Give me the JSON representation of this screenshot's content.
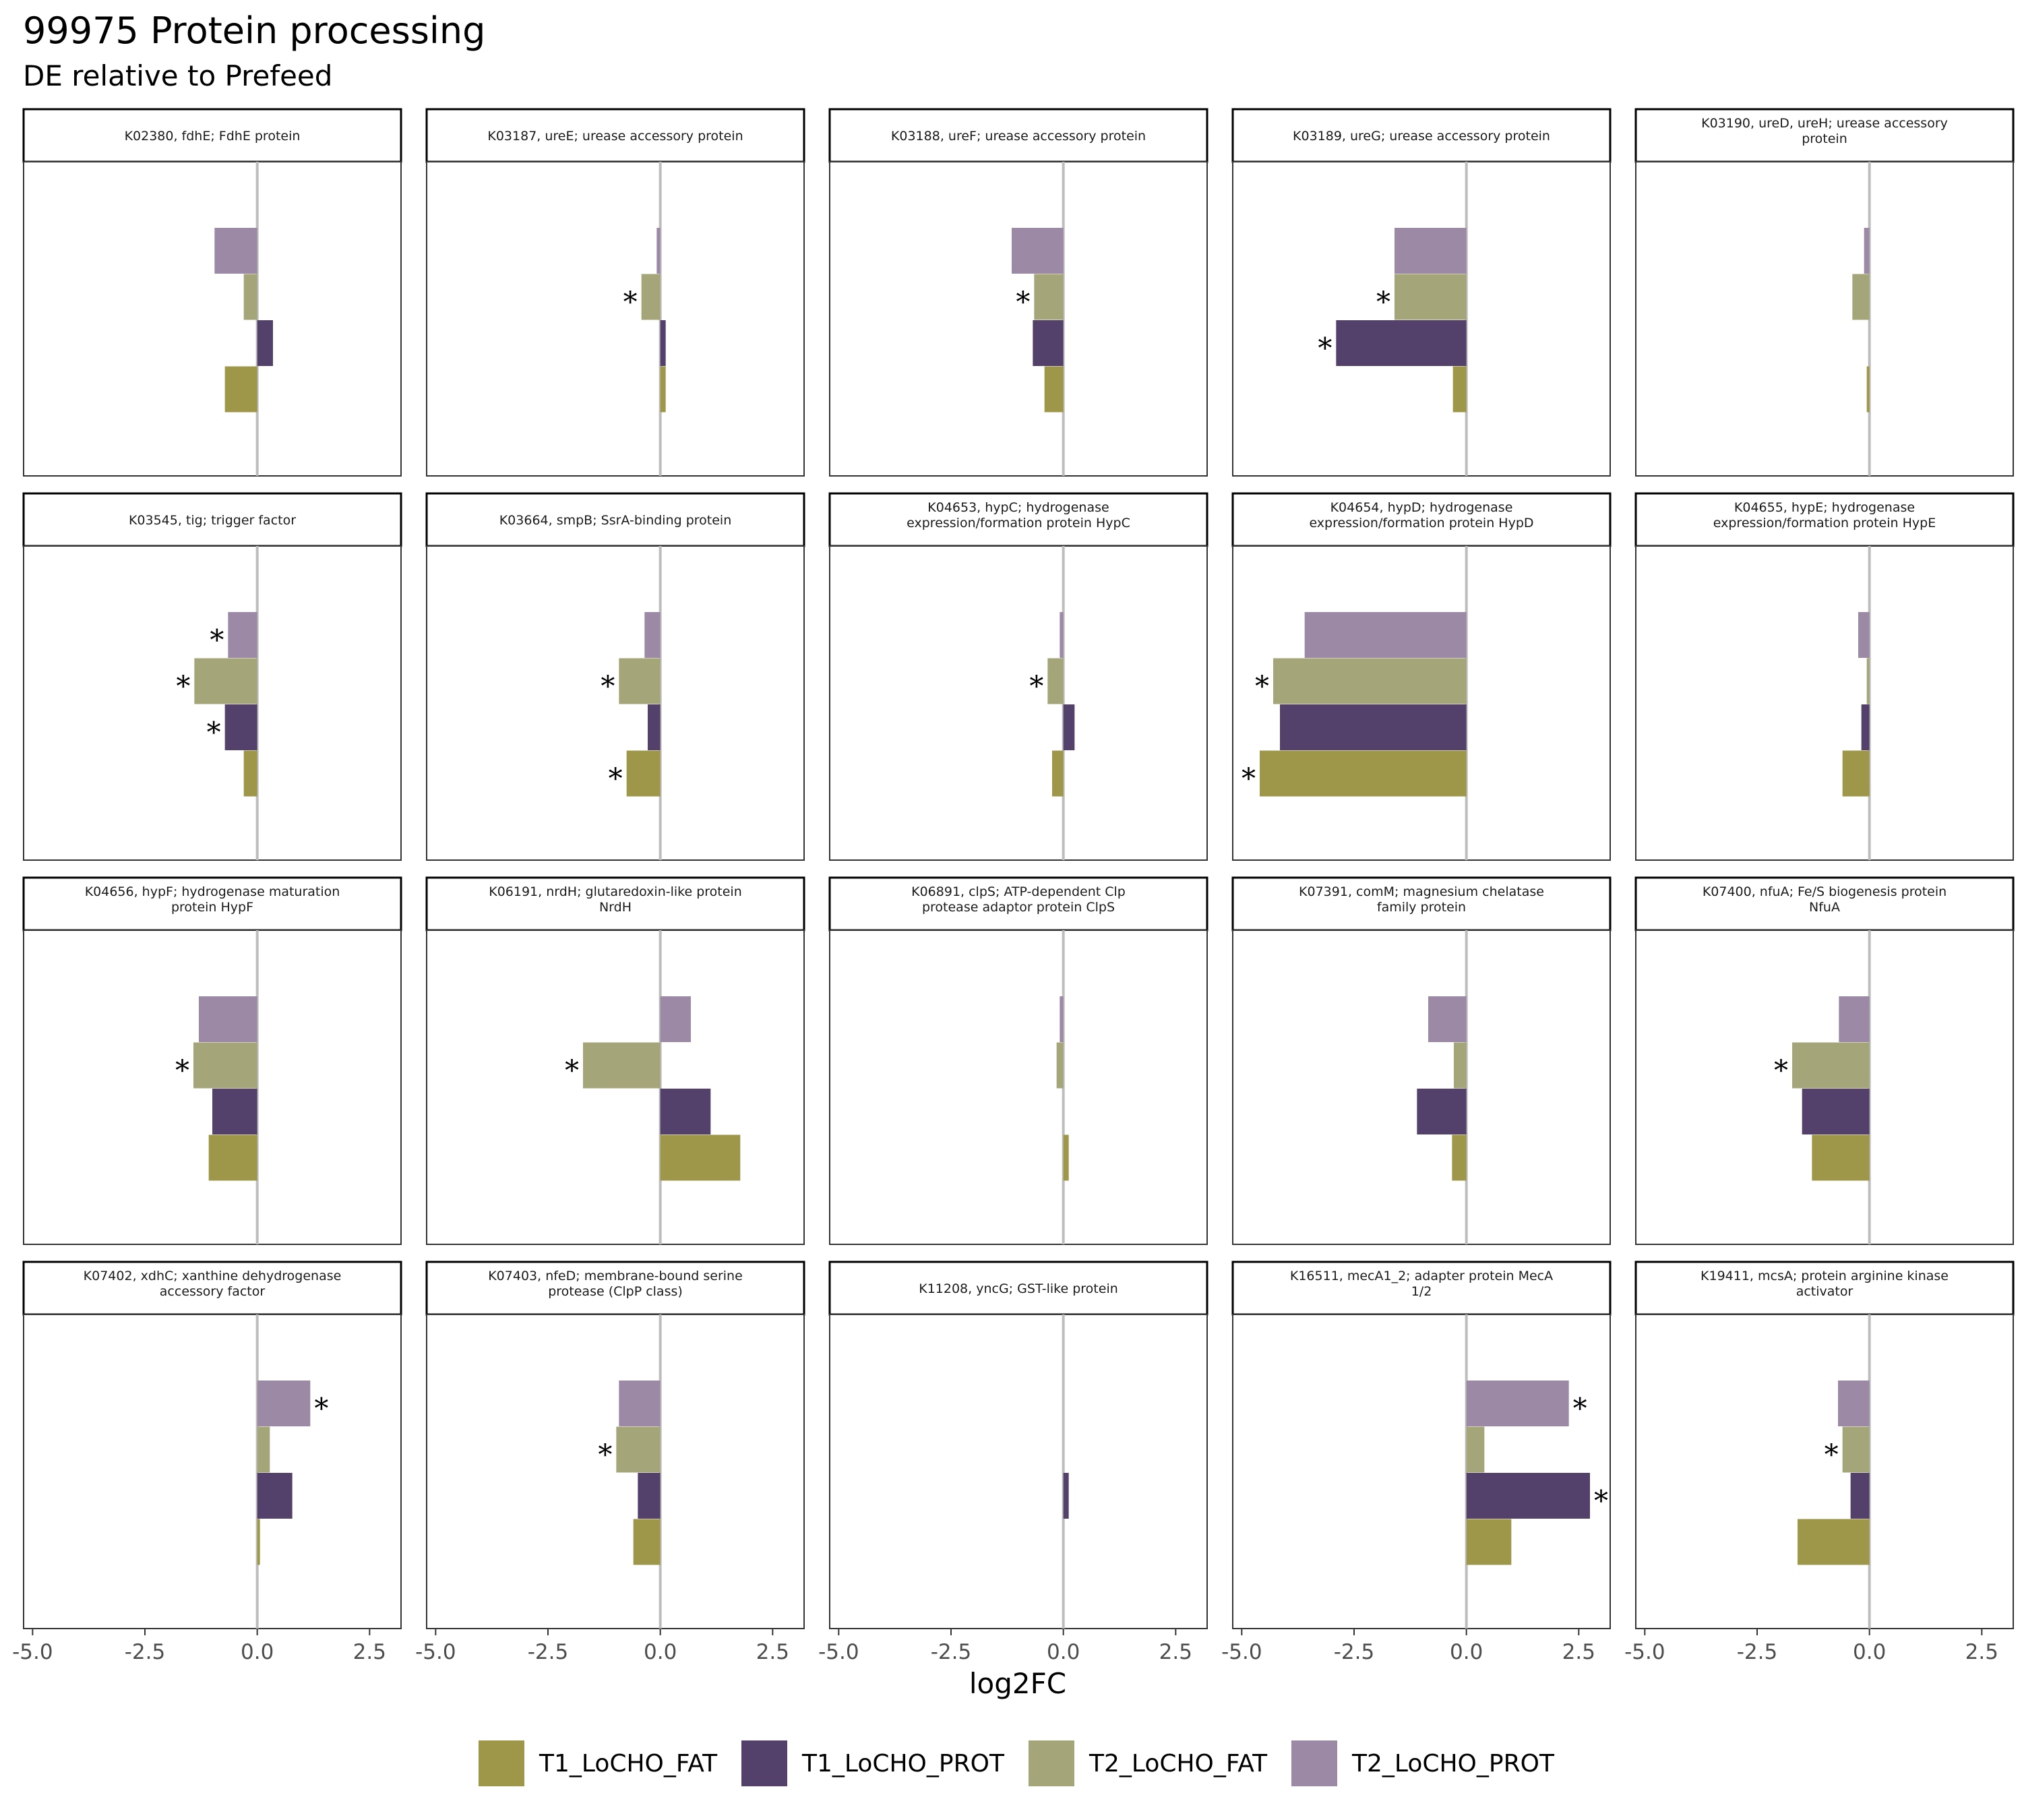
{
  "title": "99975 Protein processing",
  "subtitle": "DE relative to Prefeed",
  "chart_data": {
    "type": "bar",
    "orientation": "horizontal",
    "facet_layout": {
      "rows": 4,
      "cols": 5
    },
    "xlabel": "log2FC",
    "xlim": [
      -5.2,
      3.2
    ],
    "x_ticks": [
      -5.0,
      -2.5,
      0.0,
      2.5
    ],
    "x_tick_labels": [
      "-5.0",
      "-2.5",
      "0.0",
      "2.5"
    ],
    "reference_line": 0,
    "grid": false,
    "legend_position": "bottom",
    "series_order": [
      "T2_LoCHO_PROT",
      "T2_LoCHO_FAT",
      "T1_LoCHO_PROT",
      "T1_LoCHO_FAT"
    ],
    "legend": [
      {
        "name": "T1_LoCHO_FAT",
        "color": "#9e9648"
      },
      {
        "name": "T1_LoCHO_PROT",
        "color": "#53406b"
      },
      {
        "name": "T2_LoCHO_FAT",
        "color": "#a4a679"
      },
      {
        "name": "T2_LoCHO_PROT",
        "color": "#9c89a6"
      }
    ],
    "significance_marker": "*",
    "panels": [
      {
        "title_lines": [
          "K02380, fdhE; FdhE protein"
        ],
        "values": {
          "T2_LoCHO_PROT": -0.95,
          "T2_LoCHO_FAT": -0.3,
          "T1_LoCHO_PROT": 0.35,
          "T1_LoCHO_FAT": -0.72
        },
        "significant": []
      },
      {
        "title_lines": [
          "K03187, ureE; urease accessory protein"
        ],
        "values": {
          "T2_LoCHO_PROT": -0.08,
          "T2_LoCHO_FAT": -0.42,
          "T1_LoCHO_PROT": 0.12,
          "T1_LoCHO_FAT": 0.12
        },
        "significant": [
          "T2_LoCHO_FAT"
        ]
      },
      {
        "title_lines": [
          "K03188, ureF; urease accessory protein"
        ],
        "values": {
          "T2_LoCHO_PROT": -1.15,
          "T2_LoCHO_FAT": -0.65,
          "T1_LoCHO_PROT": -0.68,
          "T1_LoCHO_FAT": -0.42
        },
        "significant": [
          "T2_LoCHO_FAT"
        ]
      },
      {
        "title_lines": [
          "K03189, ureG; urease accessory protein"
        ],
        "values": {
          "T2_LoCHO_PROT": -1.6,
          "T2_LoCHO_FAT": -1.6,
          "T1_LoCHO_PROT": -2.9,
          "T1_LoCHO_FAT": -0.3
        },
        "significant": [
          "T2_LoCHO_FAT",
          "T1_LoCHO_PROT"
        ]
      },
      {
        "title_lines": [
          "K03190, ureD, ureH; urease accessory",
          "protein"
        ],
        "values": {
          "T2_LoCHO_PROT": -0.12,
          "T2_LoCHO_FAT": -0.38,
          "T1_LoCHO_PROT": 0.0,
          "T1_LoCHO_FAT": -0.06
        },
        "significant": []
      },
      {
        "title_lines": [
          "K03545, tig; trigger factor"
        ],
        "values": {
          "T2_LoCHO_PROT": -0.65,
          "T2_LoCHO_FAT": -1.4,
          "T1_LoCHO_PROT": -0.72,
          "T1_LoCHO_FAT": -0.3
        },
        "significant": [
          "T2_LoCHO_PROT",
          "T2_LoCHO_FAT",
          "T1_LoCHO_PROT"
        ]
      },
      {
        "title_lines": [
          "K03664, smpB; SsrA-binding protein"
        ],
        "values": {
          "T2_LoCHO_PROT": -0.35,
          "T2_LoCHO_FAT": -0.92,
          "T1_LoCHO_PROT": -0.28,
          "T1_LoCHO_FAT": -0.75
        },
        "significant": [
          "T2_LoCHO_FAT",
          "T1_LoCHO_FAT"
        ]
      },
      {
        "title_lines": [
          "K04653, hypC; hydrogenase",
          "expression/formation protein HypC"
        ],
        "values": {
          "T2_LoCHO_PROT": -0.08,
          "T2_LoCHO_FAT": -0.35,
          "T1_LoCHO_PROT": 0.25,
          "T1_LoCHO_FAT": -0.25
        },
        "significant": [
          "T2_LoCHO_FAT"
        ]
      },
      {
        "title_lines": [
          "K04654, hypD; hydrogenase",
          "expression/formation protein HypD"
        ],
        "values": {
          "T2_LoCHO_PROT": -3.6,
          "T2_LoCHO_FAT": -4.3,
          "T1_LoCHO_PROT": -4.15,
          "T1_LoCHO_FAT": -4.6
        },
        "significant": [
          "T2_LoCHO_FAT",
          "T1_LoCHO_FAT"
        ]
      },
      {
        "title_lines": [
          "K04655, hypE; hydrogenase",
          "expression/formation protein HypE"
        ],
        "values": {
          "T2_LoCHO_PROT": -0.25,
          "T2_LoCHO_FAT": -0.06,
          "T1_LoCHO_PROT": -0.18,
          "T1_LoCHO_FAT": -0.6
        },
        "significant": []
      },
      {
        "title_lines": [
          "K04656, hypF; hydrogenase maturation",
          "protein HypF"
        ],
        "values": {
          "T2_LoCHO_PROT": -1.3,
          "T2_LoCHO_FAT": -1.42,
          "T1_LoCHO_PROT": -1.0,
          "T1_LoCHO_FAT": -1.08
        },
        "significant": [
          "T2_LoCHO_FAT"
        ]
      },
      {
        "title_lines": [
          "K06191, nrdH; glutaredoxin-like protein",
          "NrdH"
        ],
        "values": {
          "T2_LoCHO_PROT": 0.68,
          "T2_LoCHO_FAT": -1.72,
          "T1_LoCHO_PROT": 1.12,
          "T1_LoCHO_FAT": 1.78
        },
        "significant": [
          "T2_LoCHO_FAT"
        ]
      },
      {
        "title_lines": [
          "K06891, clpS; ATP-dependent Clp",
          "protease adaptor protein ClpS"
        ],
        "values": {
          "T2_LoCHO_PROT": -0.08,
          "T2_LoCHO_FAT": -0.15,
          "T1_LoCHO_PROT": 0.0,
          "T1_LoCHO_FAT": 0.12
        },
        "significant": []
      },
      {
        "title_lines": [
          "K07391, comM; magnesium chelatase",
          "family protein"
        ],
        "values": {
          "T2_LoCHO_PROT": -0.85,
          "T2_LoCHO_FAT": -0.28,
          "T1_LoCHO_PROT": -1.1,
          "T1_LoCHO_FAT": -0.32
        },
        "significant": []
      },
      {
        "title_lines": [
          "K07400, nfuA; Fe/S biogenesis protein",
          "NfuA"
        ],
        "values": {
          "T2_LoCHO_PROT": -0.68,
          "T2_LoCHO_FAT": -1.72,
          "T1_LoCHO_PROT": -1.5,
          "T1_LoCHO_FAT": -1.28
        },
        "significant": [
          "T2_LoCHO_FAT"
        ]
      },
      {
        "title_lines": [
          "K07402, xdhC; xanthine dehydrogenase",
          "accessory factor"
        ],
        "values": {
          "T2_LoCHO_PROT": 1.18,
          "T2_LoCHO_FAT": 0.28,
          "T1_LoCHO_PROT": 0.78,
          "T1_LoCHO_FAT": 0.06
        },
        "significant": [
          "T2_LoCHO_PROT"
        ]
      },
      {
        "title_lines": [
          "K07403, nfeD; membrane-bound serine",
          "protease (ClpP class)"
        ],
        "values": {
          "T2_LoCHO_PROT": -0.92,
          "T2_LoCHO_FAT": -0.98,
          "T1_LoCHO_PROT": -0.5,
          "T1_LoCHO_FAT": -0.6
        },
        "significant": [
          "T2_LoCHO_FAT"
        ]
      },
      {
        "title_lines": [
          "K11208, yncG; GST-like protein"
        ],
        "values": {
          "T2_LoCHO_PROT": 0.0,
          "T2_LoCHO_FAT": 0.0,
          "T1_LoCHO_PROT": 0.12,
          "T1_LoCHO_FAT": 0.0
        },
        "significant": []
      },
      {
        "title_lines": [
          "K16511, mecA1_2; adapter protein MecA",
          "1/2"
        ],
        "values": {
          "T2_LoCHO_PROT": 2.28,
          "T2_LoCHO_FAT": 0.4,
          "T1_LoCHO_PROT": 2.75,
          "T1_LoCHO_FAT": 1.0
        },
        "significant": [
          "T2_LoCHO_PROT",
          "T1_LoCHO_PROT"
        ]
      },
      {
        "title_lines": [
          "K19411, mcsA; protein arginine kinase",
          "activator"
        ],
        "values": {
          "T2_LoCHO_PROT": -0.7,
          "T2_LoCHO_FAT": -0.6,
          "T1_LoCHO_PROT": -0.42,
          "T1_LoCHO_FAT": -1.6
        },
        "significant": [
          "T2_LoCHO_FAT"
        ]
      }
    ]
  }
}
